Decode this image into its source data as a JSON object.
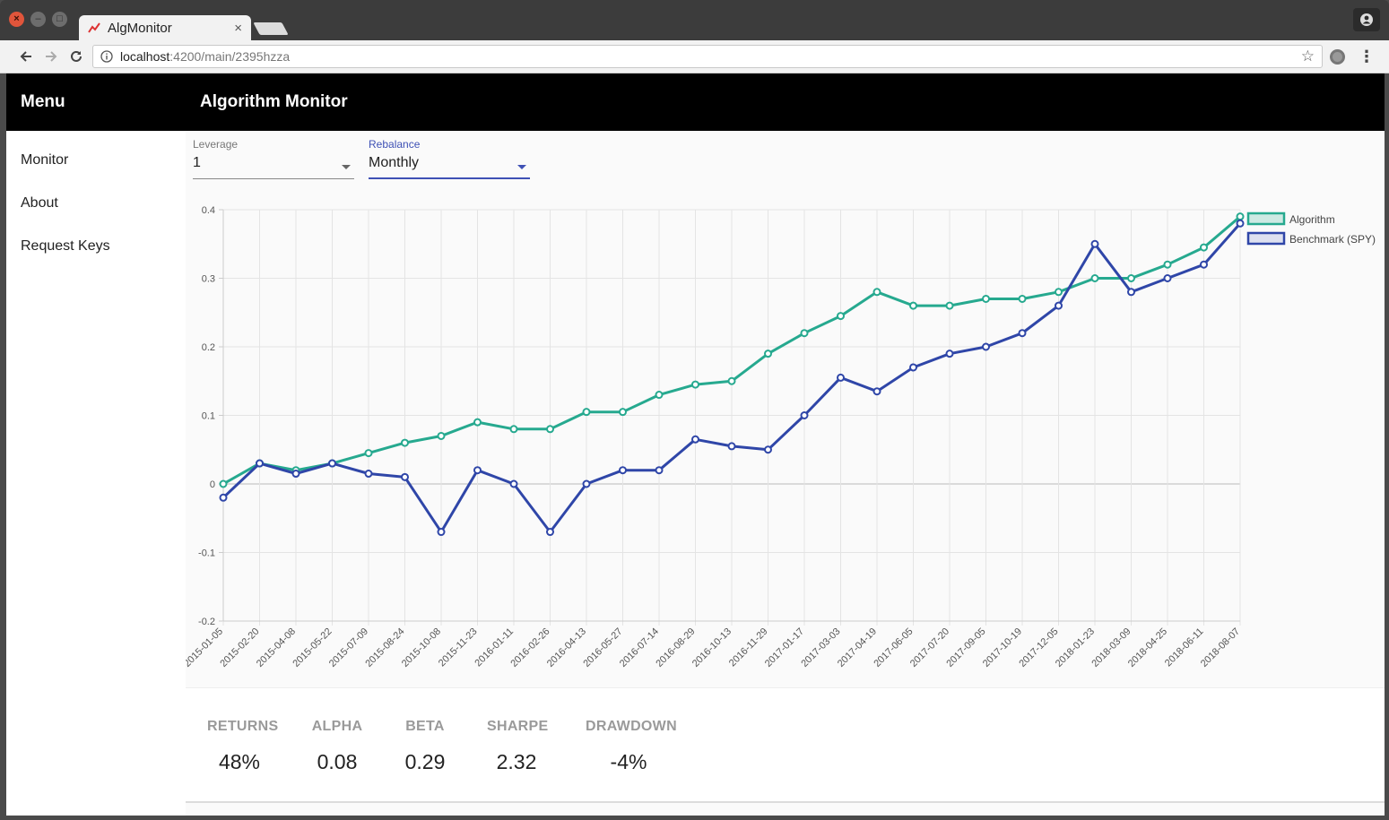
{
  "browser": {
    "tab_title": "AlgMonitor",
    "url_host": "localhost",
    "url_path": ":4200/main/2395hzza"
  },
  "app": {
    "menu_title": "Menu",
    "title": "Algorithm Monitor"
  },
  "sidebar": {
    "items": [
      {
        "label": "Monitor"
      },
      {
        "label": "About"
      },
      {
        "label": "Request Keys"
      }
    ]
  },
  "controls": {
    "leverage": {
      "label": "Leverage",
      "value": "1"
    },
    "rebalance": {
      "label": "Rebalance",
      "value": "Monthly"
    }
  },
  "colors": {
    "algorithm": "#26a98f",
    "benchmark": "#2f46a8"
  },
  "chart_data": {
    "type": "line",
    "title": "",
    "xlabel": "",
    "ylabel": "",
    "ylim": [
      -0.2,
      0.4
    ],
    "yticks": [
      "0.4",
      "0.3",
      "0.2",
      "0.1",
      "0",
      "-0.1",
      "-0.2"
    ],
    "x": [
      "2015-01-05",
      "2015-02-20",
      "2015-04-08",
      "2015-05-22",
      "2015-07-09",
      "2015-08-24",
      "2015-10-08",
      "2015-11-23",
      "2016-01-11",
      "2016-02-26",
      "2016-04-13",
      "2016-05-27",
      "2016-07-14",
      "2016-08-29",
      "2016-10-13",
      "2016-11-29",
      "2017-01-17",
      "2017-03-03",
      "2017-04-19",
      "2017-06-05",
      "2017-07-20",
      "2017-09-05",
      "2017-10-19",
      "2017-12-05",
      "2018-01-23",
      "2018-03-09",
      "2018-04-25",
      "2018-06-11",
      "2018-08-07"
    ],
    "legend_position": "right",
    "grid": true,
    "series": [
      {
        "name": "Algorithm",
        "values": [
          0.0,
          0.03,
          0.02,
          0.03,
          0.045,
          0.06,
          0.07,
          0.09,
          0.08,
          0.08,
          0.105,
          0.105,
          0.13,
          0.145,
          0.15,
          0.19,
          0.22,
          0.245,
          0.28,
          0.26,
          0.26,
          0.27,
          0.27,
          0.28,
          0.3,
          0.3,
          0.32,
          0.345,
          0.39
        ]
      },
      {
        "name": "Benchmark (SPY)",
        "values": [
          -0.02,
          0.03,
          0.015,
          0.03,
          0.015,
          0.01,
          -0.07,
          0.02,
          0.0,
          -0.07,
          0.0,
          0.02,
          0.02,
          0.065,
          0.055,
          0.05,
          0.1,
          0.155,
          0.135,
          0.17,
          0.19,
          0.2,
          0.22,
          0.26,
          0.35,
          0.28,
          0.3,
          0.32,
          0.38
        ]
      }
    ]
  },
  "stats": [
    {
      "label": "RETURNS",
      "value": "48%"
    },
    {
      "label": "ALPHA",
      "value": "0.08"
    },
    {
      "label": "BETA",
      "value": "0.29"
    },
    {
      "label": "SHARPE",
      "value": "2.32"
    },
    {
      "label": "DRAWDOWN",
      "value": "-4%"
    }
  ]
}
